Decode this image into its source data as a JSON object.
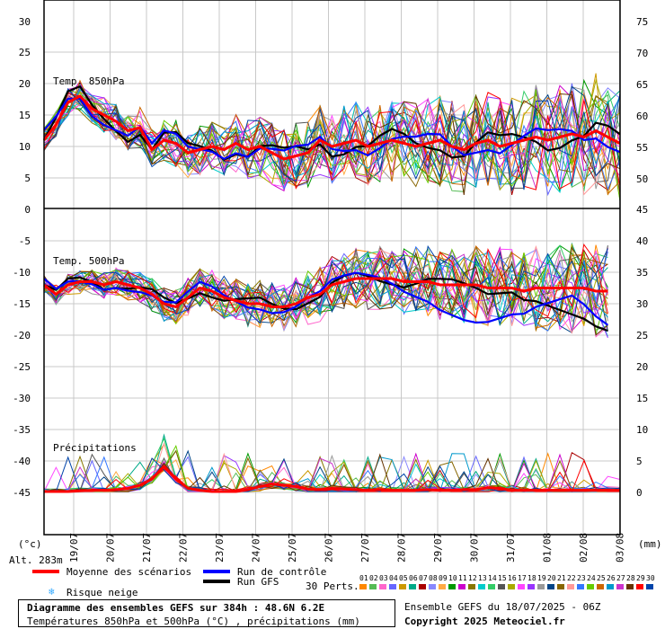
{
  "chart_data": {
    "type": "line",
    "x_dates": [
      "19/07",
      "20/07",
      "21/07",
      "22/07",
      "23/07",
      "24/07",
      "25/07",
      "26/07",
      "27/07",
      "28/07",
      "29/07",
      "30/07",
      "31/07",
      "01/08",
      "02/08",
      "03/08"
    ],
    "panels": [
      {
        "label": "Temp. 850hPa",
        "left_axis_ticks": [
          "30",
          "25",
          "20",
          "15",
          "10",
          "5",
          "0"
        ],
        "right_axis_ticks": [
          "75",
          "70",
          "65",
          "60",
          "55",
          "50"
        ],
        "ylim": [
          0,
          30
        ],
        "mean_series": [
          11,
          13.5,
          17,
          18,
          16,
          15,
          14,
          12.5,
          13,
          9.5,
          11,
          10.5,
          9,
          9.5,
          10,
          9.5,
          10.5,
          9.5,
          10,
          9,
          8,
          8.5,
          9,
          11,
          10,
          10.5,
          11,
          10,
          10.5,
          11,
          10.5,
          10,
          10.5,
          11,
          10,
          9.5,
          10.5,
          11,
          10,
          10.5,
          11,
          11.5,
          11,
          11.5,
          12,
          11.5,
          12.5,
          11.5,
          10.5
        ]
      },
      {
        "label": "Temp. 500hPa",
        "left_axis_ticks": [
          "-5",
          "-10",
          "-15",
          "-20",
          "-25"
        ],
        "right_axis_ticks": [
          "45",
          "40",
          "35",
          "30",
          "25",
          "20"
        ],
        "ylim": [
          -30,
          0
        ],
        "mean_series": [
          -12,
          -13.5,
          -12,
          -11.5,
          -11.5,
          -12,
          -11.5,
          -12,
          -12.5,
          -13.5,
          -15,
          -15.5,
          -14,
          -12.5,
          -13,
          -14,
          -14.5,
          -15,
          -15,
          -15.5,
          -15.5,
          -15,
          -14,
          -13.5,
          -12,
          -11.5,
          -11,
          -11,
          -11,
          -11,
          -11.5,
          -11.5,
          -11.5,
          -12,
          -12,
          -12,
          -12,
          -12.5,
          -12.5,
          -12.5,
          -13,
          -12.5,
          -12.5,
          -12.5,
          -12.5,
          -12.5,
          -13,
          -13
        ]
      },
      {
        "label": "Précipitations",
        "left_axis_ticks": [
          "-30",
          "-35",
          "-40",
          "-45"
        ],
        "right_axis_ticks": [
          "15",
          "10",
          "5",
          "0"
        ],
        "ylim": [
          0,
          15
        ],
        "mean_series": [
          0,
          0,
          0,
          0.1,
          0.2,
          0.2,
          0.3,
          0.5,
          1,
          2,
          4,
          2,
          0.5,
          0.2,
          0,
          0,
          0,
          0.3,
          0.8,
          1.2,
          1,
          0.8,
          0.4,
          0.3,
          0.5,
          0.4,
          0.3,
          0.2,
          0.3,
          0.2,
          0.2,
          0.2,
          0.3,
          0.2,
          0.2,
          0.3,
          0.3,
          0.6,
          0.5,
          0.2,
          0.2,
          0.2,
          0.2,
          0.2,
          0.2,
          0.2,
          0.2,
          0.2,
          0.2
        ]
      }
    ],
    "left_unit": "(°c)",
    "right_unit": "(mm)",
    "series": [
      {
        "name": "Moyenne des scénarios",
        "color": "#ff0000"
      },
      {
        "name": "Run de contrôle",
        "color": "#0000ff"
      },
      {
        "name": "Run GFS",
        "color": "#000000"
      }
    ]
  },
  "legend": {
    "altitude": "Alt. 283m",
    "mean_label": "Moyenne des scénarios",
    "control_label": "Run de contrôle",
    "gfs_label": "Run GFS",
    "snow_label": "Risque neige",
    "perts_label": "30 Perts.",
    "member_numbers": [
      "01",
      "02",
      "03",
      "04",
      "05",
      "06",
      "07",
      "08",
      "09",
      "10",
      "11",
      "12",
      "13",
      "14",
      "15",
      "16",
      "17",
      "18",
      "19",
      "20",
      "21",
      "22",
      "23",
      "24",
      "25",
      "26",
      "27",
      "28",
      "29",
      "30"
    ],
    "member_colors": [
      "#ff8800",
      "#55bb55",
      "#ff66cc",
      "#6666ff",
      "#cc9900",
      "#00aa88",
      "#aa0000",
      "#8888ff",
      "#ffaa44",
      "#009900",
      "#cc00cc",
      "#887700",
      "#00cccc",
      "#33cc66",
      "#555555",
      "#aaaa00",
      "#ff44ff",
      "#9933ff",
      "#999999",
      "#004488",
      "#886600",
      "#ff9999",
      "#3377ff",
      "#66cc00",
      "#cc6600",
      "#0099cc",
      "#cc33cc",
      "#663300",
      "#ff0000",
      "#0044aa"
    ]
  },
  "footer": {
    "title": "Diagramme des ensembles GEFS sur 384h : 48.6N 6.2E",
    "subtitle": "Températures 850hPa et 500hPa (°C) , précipitations (mm)",
    "run": "Ensemble GEFS du 18/07/2025 - 06Z",
    "copyright": "Copyright 2025 Meteociel.fr"
  },
  "colors": {
    "mean": "#ff0000",
    "control": "#0000ff",
    "gfs": "#000000",
    "snow": "#33aaff"
  }
}
